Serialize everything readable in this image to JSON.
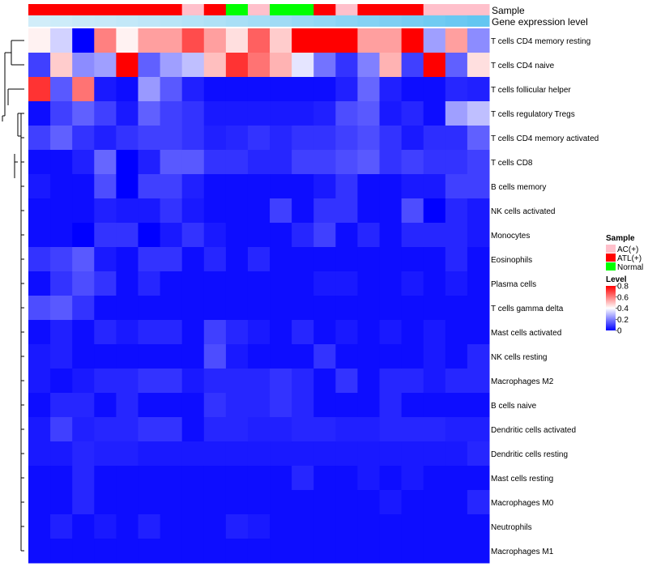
{
  "chart_data": {
    "type": "heatmap",
    "annotation_tracks": [
      {
        "label": "Sample",
        "values": [
          "ATL(+)",
          "ATL(+)",
          "ATL(+)",
          "ATL(+)",
          "ATL(+)",
          "ATL(+)",
          "ATL(+)",
          "AC(+)",
          "ATL(+)",
          "Normal",
          "AC(+)",
          "Normal",
          "Normal",
          "ATL(+)",
          "AC(+)",
          "ATL(+)",
          "ATL(+)",
          "ATL(+)",
          "AC(+)",
          "AC(+)",
          "AC(+)"
        ]
      },
      {
        "label": "Gene expression level",
        "values": [
          0.02,
          0.05,
          0.08,
          0.1,
          0.13,
          0.16,
          0.2,
          0.24,
          0.28,
          0.32,
          0.36,
          0.4,
          0.45,
          0.5,
          0.55,
          0.6,
          0.65,
          0.7,
          0.75,
          0.8,
          0.85
        ]
      }
    ],
    "rows": [
      "T cells CD4 memory resting",
      "T cells CD4 naive",
      "T cells follicular helper",
      "T cells regulatory  Tregs",
      "T cells CD4 memory activated",
      "T cells CD8",
      "B cells memory",
      "NK cells activated",
      "Monocytes",
      "Eosinophils",
      "Plasma cells",
      "T cells gamma delta",
      "Mast cells activated",
      "NK cells resting",
      "Macrophages M2",
      "B cells naive",
      "Dendritic cells activated",
      "Dendritic cells resting",
      "Mast cells resting",
      "Macrophages M0",
      "Neutrophils",
      "Macrophages M1"
    ],
    "values": [
      [
        0.42,
        0.33,
        0.0,
        0.6,
        0.42,
        0.55,
        0.55,
        0.68,
        0.55,
        0.45,
        0.65,
        0.48,
        0.8,
        0.8,
        0.8,
        0.55,
        0.55,
        0.8,
        0.25,
        0.55,
        0.22
      ],
      [
        0.1,
        0.48,
        0.22,
        0.25,
        0.8,
        0.15,
        0.25,
        0.3,
        0.5,
        0.72,
        0.62,
        0.52,
        0.36,
        0.18,
        0.08,
        0.2,
        0.52,
        0.1,
        0.8,
        0.15,
        0.45
      ],
      [
        0.72,
        0.14,
        0.62,
        0.04,
        0.02,
        0.24,
        0.14,
        0.05,
        0.02,
        0.02,
        0.02,
        0.02,
        0.02,
        0.02,
        0.05,
        0.16,
        0.05,
        0.02,
        0.02,
        0.06,
        0.05
      ],
      [
        0.02,
        0.1,
        0.15,
        0.1,
        0.04,
        0.15,
        0.1,
        0.08,
        0.04,
        0.04,
        0.04,
        0.04,
        0.04,
        0.05,
        0.12,
        0.14,
        0.04,
        0.06,
        0.02,
        0.25,
        0.3
      ],
      [
        0.1,
        0.15,
        0.08,
        0.05,
        0.08,
        0.1,
        0.1,
        0.08,
        0.05,
        0.06,
        0.08,
        0.06,
        0.08,
        0.08,
        0.1,
        0.12,
        0.08,
        0.04,
        0.07,
        0.07,
        0.15
      ],
      [
        0.02,
        0.02,
        0.05,
        0.16,
        0.0,
        0.05,
        0.14,
        0.14,
        0.08,
        0.08,
        0.06,
        0.06,
        0.1,
        0.1,
        0.12,
        0.14,
        0.08,
        0.1,
        0.08,
        0.08,
        0.1
      ],
      [
        0.04,
        0.02,
        0.02,
        0.12,
        0.0,
        0.1,
        0.1,
        0.05,
        0.02,
        0.02,
        0.02,
        0.02,
        0.02,
        0.04,
        0.08,
        0.02,
        0.02,
        0.04,
        0.04,
        0.1,
        0.1
      ],
      [
        0.02,
        0.02,
        0.02,
        0.05,
        0.04,
        0.04,
        0.08,
        0.04,
        0.02,
        0.02,
        0.02,
        0.1,
        0.02,
        0.08,
        0.08,
        0.02,
        0.02,
        0.12,
        0.0,
        0.06,
        0.04
      ],
      [
        0.02,
        0.02,
        0.0,
        0.08,
        0.08,
        0.0,
        0.04,
        0.08,
        0.04,
        0.02,
        0.02,
        0.02,
        0.06,
        0.1,
        0.02,
        0.06,
        0.02,
        0.06,
        0.06,
        0.06,
        0.04
      ],
      [
        0.08,
        0.1,
        0.14,
        0.04,
        0.02,
        0.08,
        0.08,
        0.02,
        0.06,
        0.02,
        0.06,
        0.02,
        0.02,
        0.02,
        0.02,
        0.02,
        0.02,
        0.02,
        0.02,
        0.06,
        0.02
      ],
      [
        0.02,
        0.08,
        0.12,
        0.08,
        0.02,
        0.06,
        0.02,
        0.02,
        0.02,
        0.02,
        0.02,
        0.02,
        0.02,
        0.04,
        0.04,
        0.02,
        0.02,
        0.04,
        0.02,
        0.04,
        0.02
      ],
      [
        0.12,
        0.14,
        0.08,
        0.02,
        0.02,
        0.02,
        0.02,
        0.02,
        0.02,
        0.02,
        0.02,
        0.02,
        0.02,
        0.02,
        0.02,
        0.02,
        0.02,
        0.02,
        0.02,
        0.02,
        0.02
      ],
      [
        0.02,
        0.05,
        0.02,
        0.06,
        0.04,
        0.06,
        0.06,
        0.02,
        0.1,
        0.06,
        0.04,
        0.02,
        0.06,
        0.02,
        0.04,
        0.02,
        0.04,
        0.02,
        0.04,
        0.02,
        0.02
      ],
      [
        0.04,
        0.05,
        0.02,
        0.02,
        0.02,
        0.02,
        0.02,
        0.02,
        0.12,
        0.04,
        0.02,
        0.02,
        0.02,
        0.08,
        0.02,
        0.02,
        0.02,
        0.02,
        0.04,
        0.02,
        0.06
      ],
      [
        0.04,
        0.02,
        0.04,
        0.06,
        0.06,
        0.08,
        0.08,
        0.04,
        0.06,
        0.06,
        0.06,
        0.08,
        0.06,
        0.02,
        0.08,
        0.02,
        0.06,
        0.06,
        0.04,
        0.06,
        0.06
      ],
      [
        0.02,
        0.06,
        0.06,
        0.02,
        0.06,
        0.02,
        0.02,
        0.02,
        0.08,
        0.06,
        0.06,
        0.08,
        0.06,
        0.02,
        0.02,
        0.02,
        0.06,
        0.02,
        0.02,
        0.02,
        0.02
      ],
      [
        0.04,
        0.1,
        0.05,
        0.06,
        0.06,
        0.08,
        0.08,
        0.02,
        0.06,
        0.06,
        0.05,
        0.05,
        0.06,
        0.06,
        0.05,
        0.05,
        0.06,
        0.06,
        0.06,
        0.05,
        0.05
      ],
      [
        0.04,
        0.04,
        0.06,
        0.05,
        0.05,
        0.04,
        0.04,
        0.04,
        0.04,
        0.04,
        0.04,
        0.04,
        0.04,
        0.04,
        0.04,
        0.04,
        0.04,
        0.04,
        0.04,
        0.04,
        0.06
      ],
      [
        0.02,
        0.02,
        0.06,
        0.02,
        0.02,
        0.02,
        0.02,
        0.02,
        0.02,
        0.02,
        0.02,
        0.02,
        0.06,
        0.02,
        0.02,
        0.04,
        0.02,
        0.04,
        0.02,
        0.02,
        0.02
      ],
      [
        0.02,
        0.02,
        0.06,
        0.02,
        0.02,
        0.02,
        0.02,
        0.02,
        0.02,
        0.02,
        0.02,
        0.02,
        0.02,
        0.02,
        0.02,
        0.02,
        0.04,
        0.02,
        0.02,
        0.02,
        0.06
      ],
      [
        0.02,
        0.05,
        0.02,
        0.04,
        0.02,
        0.05,
        0.02,
        0.02,
        0.02,
        0.05,
        0.04,
        0.02,
        0.02,
        0.02,
        0.02,
        0.02,
        0.02,
        0.02,
        0.02,
        0.02,
        0.02
      ],
      [
        0.02,
        0.02,
        0.02,
        0.02,
        0.02,
        0.02,
        0.02,
        0.02,
        0.02,
        0.02,
        0.02,
        0.02,
        0.02,
        0.02,
        0.02,
        0.02,
        0.02,
        0.02,
        0.02,
        0.02,
        0.02
      ]
    ],
    "color_scale": {
      "min": 0,
      "mid": 0.4,
      "max": 0.8,
      "low_color": "#0000FF",
      "mid_color": "#FFFFFF",
      "high_color": "#FF0000"
    },
    "legend": {
      "sample_title": "Sample",
      "sample_items": [
        {
          "label": "AC(+)",
          "color": "#FFC0CB"
        },
        {
          "label": "ATL(+)",
          "color": "#FF0000"
        },
        {
          "label": "Normal",
          "color": "#00FF00"
        }
      ],
      "level_title": "Level",
      "level_ticks": [
        "0.8",
        "0.6",
        "0.4",
        "0.2",
        "0"
      ],
      "placement": "right"
    },
    "gene_expression_colors": {
      "low": "#D4EEF9",
      "high": "#4FBFF0"
    },
    "dendrogram": "row-clustering-left"
  }
}
